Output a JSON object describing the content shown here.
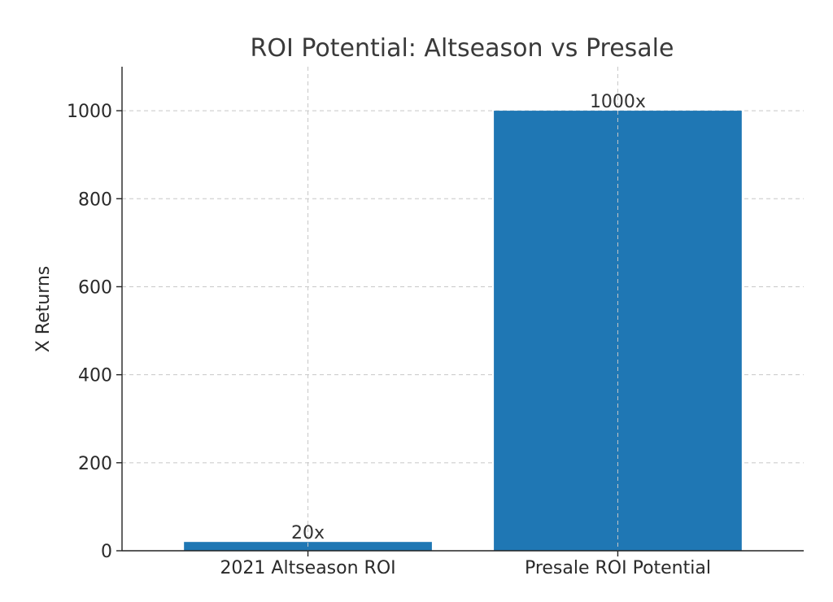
{
  "chart_data": {
    "type": "bar",
    "title": "ROI Potential: Altseason vs Presale",
    "xlabel": "",
    "ylabel": "X Returns",
    "categories": [
      "2021 Altseason ROI",
      "Presale ROI Potential"
    ],
    "values": [
      20,
      1000
    ],
    "data_labels": [
      "20x",
      "1000x"
    ],
    "ylim": [
      0,
      1100
    ],
    "yticks": [
      0,
      200,
      400,
      600,
      800,
      1000
    ],
    "grid": true,
    "bar_color": "#1f77b4"
  }
}
